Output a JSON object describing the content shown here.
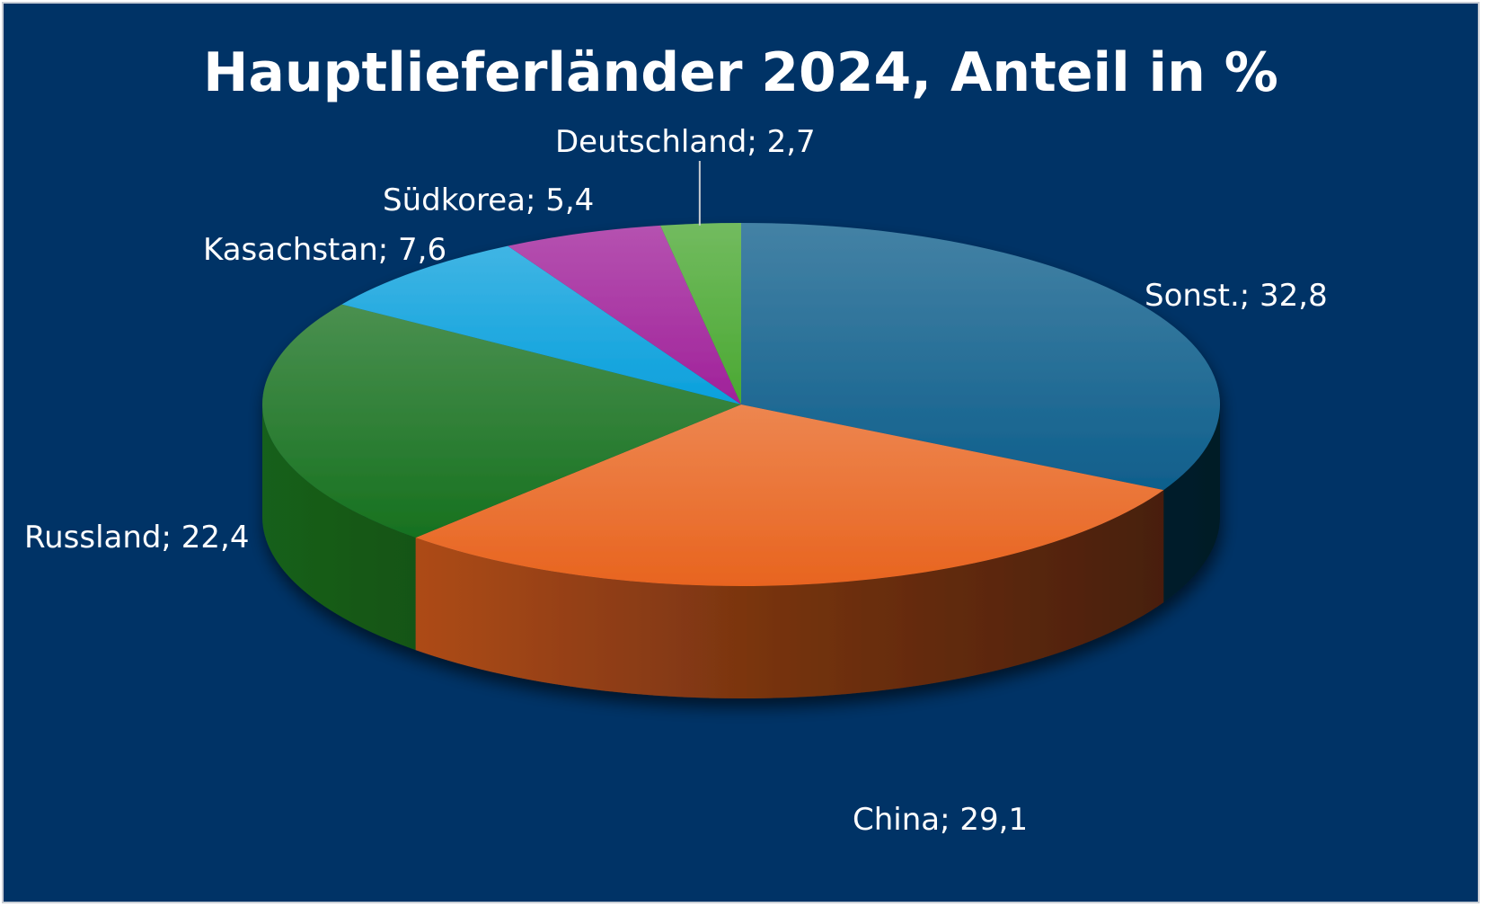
{
  "chart_data": {
    "type": "pie",
    "title": "Hauptlieferländer 2024, Anteil in %",
    "slices": [
      {
        "name": "Sonst.",
        "value": 32.8,
        "label": "Sonst.; 32,8",
        "color": "#0f5f8c"
      },
      {
        "name": "China",
        "value": 29.1,
        "label": "China; 29,1",
        "color": "#e8641f"
      },
      {
        "name": "Russland",
        "value": 22.4,
        "label": "Russland; 22,4",
        "color": "#17711f"
      },
      {
        "name": "Kasachstan",
        "value": 7.6,
        "label": "Kasachstan; 7,6",
        "color": "#0aa0dc"
      },
      {
        "name": "Südkorea",
        "value": 5.4,
        "label": "Südkorea; 5,4",
        "color": "#a0219a"
      },
      {
        "name": "Deutschland",
        "value": 2.7,
        "label": "Deutschland; 2,7",
        "color": "#4aa832"
      }
    ],
    "style": "3d-pie",
    "start": "12 o'clock",
    "direction": "clockwise",
    "background_color": "#003366",
    "label_color": "#ffffff"
  }
}
